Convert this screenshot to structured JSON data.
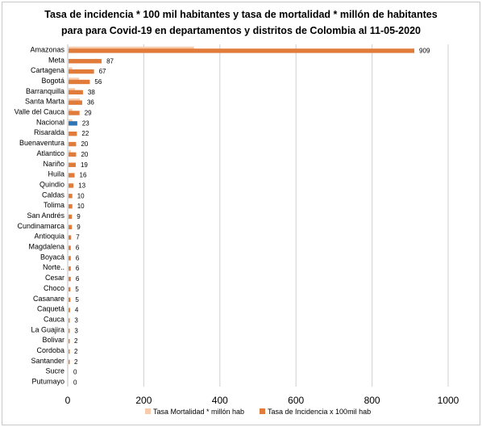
{
  "chart_data": {
    "type": "bar",
    "orientation": "horizontal",
    "title_line1": "Tasa de incidencia * 100 mil habitantes y tasa de mortalidad * millón de habitantes",
    "title_line2": "para  para Covid-19  en departamentos y distritos de Colombia al 11-05-2020",
    "categories": [
      "Amazonas",
      "Meta",
      "Cartagena",
      "Bogotá",
      "Barranquilla",
      "Santa Marta",
      "Valle del Cauca",
      "Nacional",
      "Risaralda",
      "Buenaventura",
      "Atlantico",
      "Nariño",
      "Huila",
      "Quindio",
      "Caldas",
      "Tolima",
      "San Andrés",
      "Cundinamarca",
      "Antioquia",
      "Magdalena",
      "Boyacá",
      "Norte..",
      "Cesar",
      "Choco",
      "Casanare",
      "Caquetá",
      "Cauca",
      "La Guajira",
      "Bolivar",
      "Cordoba",
      "Santander",
      "Sucre",
      "Putumayo"
    ],
    "series": [
      {
        "name": "Tasa Mortalidad * millón hab",
        "color": "#f8cbad",
        "values": [
          330,
          0,
          10,
          28,
          17,
          30,
          10,
          10,
          0,
          0,
          6,
          0,
          0,
          0,
          0,
          0,
          0,
          0,
          0,
          0,
          0,
          0,
          0,
          0,
          0,
          0,
          0,
          0,
          0,
          0,
          0,
          0,
          0
        ]
      },
      {
        "name": "Tasa de Incidencia x 100mil hab",
        "color": "#e07b39",
        "values": [
          909,
          87,
          67,
          56,
          38,
          36,
          29,
          23,
          22,
          20,
          20,
          19,
          16,
          13,
          10,
          10,
          9,
          9,
          7,
          6,
          6,
          6,
          6,
          5,
          5,
          4,
          3,
          3,
          2,
          2,
          2,
          0,
          0
        ],
        "labels": [
          "909",
          "87",
          "67",
          "56",
          "38",
          "36",
          "29",
          "23",
          "22",
          "20",
          "20",
          "19",
          "16",
          "13",
          "10",
          "10",
          "9",
          "9",
          "7",
          "6",
          "6",
          "6",
          "6",
          "5",
          "5",
          "4",
          "3",
          "3",
          "2",
          "2",
          "2",
          "0",
          "0"
        ]
      }
    ],
    "highlight": {
      "category": "Nacional",
      "color": "#2e75b6"
    },
    "xlim": [
      0,
      1000
    ],
    "xticks": [
      0,
      200,
      400,
      600,
      800,
      1000
    ],
    "xtick_labels": [
      "0",
      "200",
      "400",
      "600",
      "800",
      "1000"
    ],
    "grid": "vertical",
    "legend_position": "bottom"
  }
}
